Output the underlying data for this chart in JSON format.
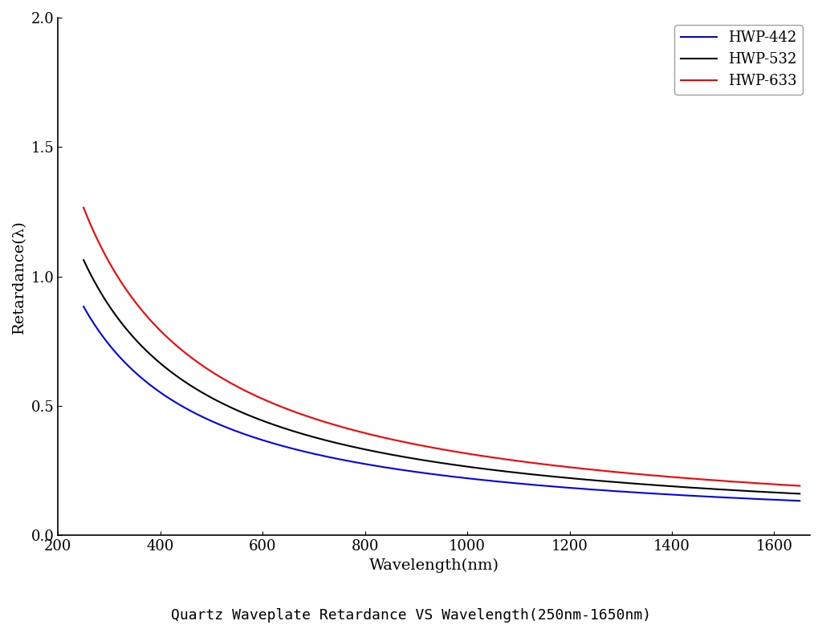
{
  "title": "Quartz Waveplate Retardance VS Wavelength(250nm-1650nm)",
  "xlabel": "Wavelength(nm)",
  "ylabel": "Retardance(λ)",
  "xlim": [
    230,
    1670
  ],
  "ylim": [
    0.0,
    2.0
  ],
  "xticks": [
    200,
    400,
    600,
    800,
    1000,
    1200,
    1400,
    1600
  ],
  "yticks": [
    0.0,
    0.5,
    1.0,
    1.5,
    2.0
  ],
  "series": [
    {
      "label": "HWP-442",
      "color": "#0000FF",
      "design_wl": 442
    },
    {
      "label": "HWP-532",
      "color": "#000000",
      "design_wl": 532
    },
    {
      "label": "HWP-633",
      "color": "#FF0000",
      "design_wl": 633
    }
  ],
  "wl_start": 250,
  "wl_end": 1650,
  "background_color": "#FFFFFF",
  "title_fontsize": 13,
  "label_fontsize": 14,
  "tick_fontsize": 13,
  "legend_fontsize": 13,
  "linewidth": 1.5
}
